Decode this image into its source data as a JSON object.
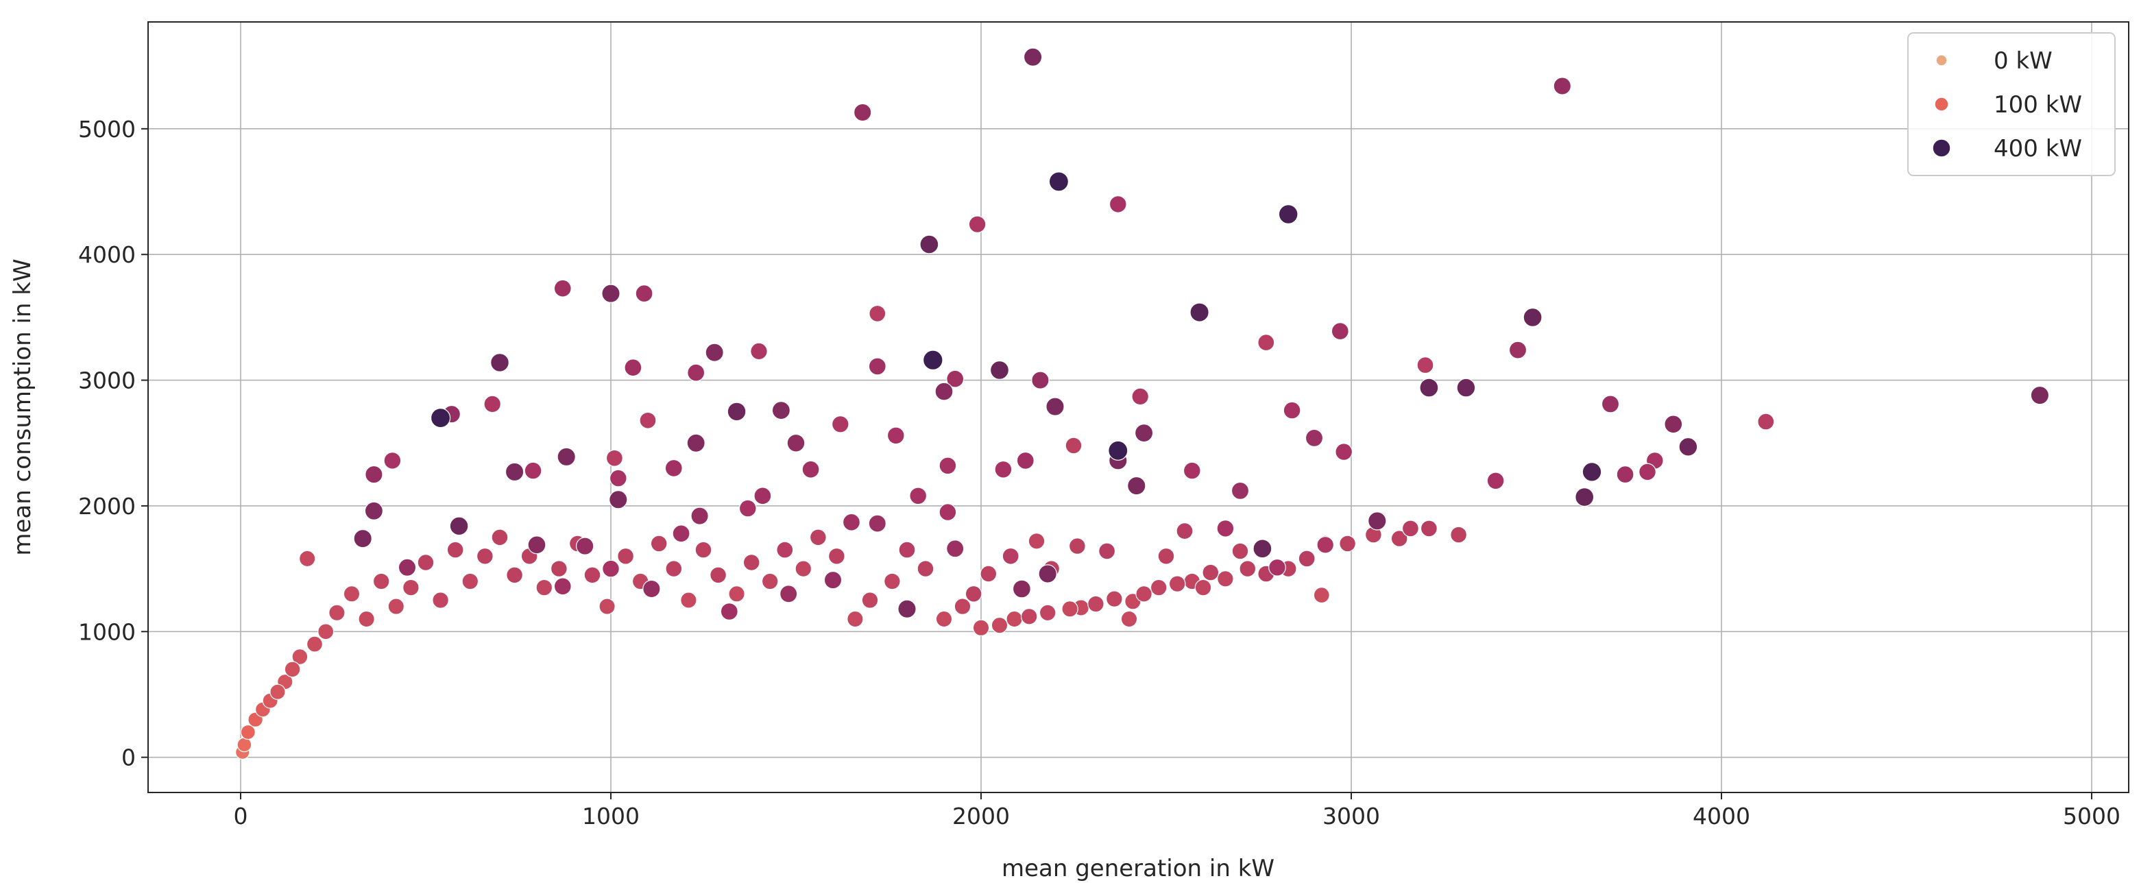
{
  "chart_data": {
    "type": "scatter",
    "xlabel": "mean generation in kW",
    "ylabel": "mean consumption in kW",
    "xlim": [
      -250,
      5100
    ],
    "ylim": [
      -280,
      5850
    ],
    "xticks": [
      0,
      1000,
      2000,
      3000,
      4000,
      5000
    ],
    "yticks": [
      0,
      1000,
      2000,
      3000,
      4000,
      5000
    ],
    "grid": true,
    "legend_position": "top-right",
    "size_legend": [
      {
        "label": "0 kW",
        "kw": 0,
        "color": "#e9a87e"
      },
      {
        "label": "100 kW",
        "kw": 100,
        "color": "#e8645a"
      },
      {
        "label": "400 kW",
        "kw": 400,
        "color": "#3b1e52"
      }
    ],
    "points": [
      [
        2140,
        5570,
        300
      ],
      [
        3570,
        5340,
        260
      ],
      [
        1680,
        5130,
        260
      ],
      [
        2210,
        4580,
        400
      ],
      [
        2370,
        4400,
        230
      ],
      [
        2830,
        4320,
        380
      ],
      [
        1990,
        4240,
        220
      ],
      [
        1860,
        4080,
        330
      ],
      [
        870,
        3730,
        240
      ],
      [
        1000,
        3690,
        300
      ],
      [
        1090,
        3690,
        240
      ],
      [
        2590,
        3540,
        360
      ],
      [
        3490,
        3500,
        330
      ],
      [
        1720,
        3530,
        200
      ],
      [
        2970,
        3390,
        240
      ],
      [
        2770,
        3300,
        200
      ],
      [
        1280,
        3220,
        290
      ],
      [
        1400,
        3230,
        220
      ],
      [
        3450,
        3240,
        250
      ],
      [
        1870,
        3160,
        420
      ],
      [
        700,
        3140,
        320
      ],
      [
        1060,
        3100,
        240
      ],
      [
        1230,
        3060,
        240
      ],
      [
        2050,
        3080,
        330
      ],
      [
        3200,
        3120,
        200
      ],
      [
        1720,
        3110,
        240
      ],
      [
        2160,
        3000,
        260
      ],
      [
        1930,
        3010,
        240
      ],
      [
        3210,
        2940,
        330
      ],
      [
        3310,
        2940,
        320
      ],
      [
        1900,
        2910,
        280
      ],
      [
        4860,
        2880,
        300
      ],
      [
        2430,
        2870,
        220
      ],
      [
        2840,
        2760,
        230
      ],
      [
        3700,
        2810,
        250
      ],
      [
        680,
        2810,
        220
      ],
      [
        2200,
        2790,
        300
      ],
      [
        1340,
        2750,
        320
      ],
      [
        1460,
        2760,
        290
      ],
      [
        540,
        2700,
        400
      ],
      [
        570,
        2730,
        260
      ],
      [
        2900,
        2540,
        250
      ],
      [
        3870,
        2650,
        280
      ],
      [
        4120,
        2670,
        200
      ],
      [
        1620,
        2650,
        220
      ],
      [
        1100,
        2680,
        200
      ],
      [
        2440,
        2580,
        290
      ],
      [
        1770,
        2560,
        230
      ],
      [
        1500,
        2500,
        270
      ],
      [
        3910,
        2470,
        320
      ],
      [
        2370,
        2440,
        400
      ],
      [
        2980,
        2430,
        230
      ],
      [
        2250,
        2480,
        190
      ],
      [
        880,
        2390,
        300
      ],
      [
        1010,
        2380,
        200
      ],
      [
        1230,
        2500,
        290
      ],
      [
        410,
        2360,
        230
      ],
      [
        3820,
        2360,
        230
      ],
      [
        2060,
        2290,
        230
      ],
      [
        740,
        2270,
        300
      ],
      [
        1910,
        2320,
        230
      ],
      [
        3630,
        2070,
        330
      ],
      [
        3650,
        2270,
        370
      ],
      [
        3740,
        2250,
        240
      ],
      [
        3800,
        2270,
        230
      ],
      [
        360,
        2250,
        260
      ],
      [
        1020,
        2220,
        230
      ],
      [
        2370,
        2360,
        300
      ],
      [
        2120,
        2360,
        240
      ],
      [
        1170,
        2300,
        240
      ],
      [
        790,
        2280,
        230
      ],
      [
        360,
        1960,
        290
      ],
      [
        330,
        1740,
        300
      ],
      [
        1910,
        1950,
        230
      ],
      [
        3070,
        1880,
        300
      ],
      [
        2760,
        1660,
        330
      ],
      [
        3390,
        2200,
        230
      ],
      [
        2180,
        1460,
        300
      ],
      [
        2110,
        1340,
        280
      ],
      [
        1020,
        2050,
        300
      ],
      [
        590,
        1840,
        320
      ],
      [
        1800,
        1180,
        300
      ],
      [
        2420,
        2160,
        300
      ],
      [
        2570,
        2280,
        230
      ],
      [
        2700,
        2120,
        250
      ],
      [
        1830,
        2080,
        230
      ],
      [
        1540,
        2290,
        240
      ],
      [
        1720,
        1860,
        250
      ],
      [
        1240,
        1920,
        260
      ],
      [
        930,
        1680,
        260
      ],
      [
        800,
        1690,
        280
      ],
      [
        1650,
        1870,
        240
      ],
      [
        2800,
        1510,
        230
      ],
      [
        2660,
        1820,
        230
      ],
      [
        2930,
        1690,
        220
      ],
      [
        1410,
        2080,
        240
      ],
      [
        1110,
        1340,
        260
      ],
      [
        1600,
        1410,
        260
      ],
      [
        1320,
        1160,
        240
      ],
      [
        1480,
        1300,
        250
      ],
      [
        1000,
        1500,
        230
      ],
      [
        870,
        1360,
        240
      ],
      [
        1190,
        1780,
        240
      ],
      [
        1370,
        1980,
        230
      ],
      [
        450,
        1510,
        260
      ],
      [
        1930,
        1660,
        250
      ],
      [
        3290,
        1770,
        190
      ],
      [
        3210,
        1820,
        200
      ],
      [
        3160,
        1820,
        200
      ],
      [
        3130,
        1740,
        190
      ],
      [
        3060,
        1770,
        190
      ],
      [
        2990,
        1700,
        190
      ],
      [
        2930,
        1700,
        190
      ],
      [
        2920,
        1290,
        160
      ],
      [
        2880,
        1580,
        200
      ],
      [
        2830,
        1500,
        190
      ],
      [
        2770,
        1460,
        200
      ],
      [
        2720,
        1500,
        190
      ],
      [
        2700,
        1640,
        190
      ],
      [
        2660,
        1420,
        180
      ],
      [
        2620,
        1470,
        190
      ],
      [
        2570,
        1400,
        180
      ],
      [
        2530,
        1380,
        180
      ],
      [
        2480,
        1350,
        180
      ],
      [
        2440,
        1300,
        180
      ],
      [
        2410,
        1240,
        170
      ],
      [
        2360,
        1260,
        180
      ],
      [
        2310,
        1220,
        180
      ],
      [
        2270,
        1190,
        170
      ],
      [
        2240,
        1180,
        170
      ],
      [
        2180,
        1150,
        180
      ],
      [
        2130,
        1120,
        180
      ],
      [
        2090,
        1100,
        170
      ],
      [
        2050,
        1050,
        170
      ],
      [
        2000,
        1030,
        170
      ],
      [
        2400,
        1100,
        170
      ],
      [
        2600,
        1350,
        180
      ],
      [
        2500,
        1600,
        190
      ],
      [
        2550,
        1800,
        200
      ],
      [
        2340,
        1640,
        200
      ],
      [
        2260,
        1680,
        190
      ],
      [
        2190,
        1500,
        190
      ],
      [
        2150,
        1720,
        180
      ],
      [
        2080,
        1600,
        200
      ],
      [
        2020,
        1460,
        190
      ],
      [
        1980,
        1300,
        190
      ],
      [
        1950,
        1200,
        180
      ],
      [
        1900,
        1100,
        170
      ],
      [
        1850,
        1500,
        190
      ],
      [
        1800,
        1650,
        200
      ],
      [
        1760,
        1400,
        180
      ],
      [
        1700,
        1250,
        180
      ],
      [
        1660,
        1100,
        170
      ],
      [
        1610,
        1600,
        190
      ],
      [
        1560,
        1750,
        190
      ],
      [
        1520,
        1500,
        180
      ],
      [
        1470,
        1650,
        200
      ],
      [
        1430,
        1400,
        180
      ],
      [
        1380,
        1550,
        190
      ],
      [
        1340,
        1300,
        170
      ],
      [
        1290,
        1450,
        190
      ],
      [
        1250,
        1650,
        190
      ],
      [
        1210,
        1250,
        170
      ],
      [
        1170,
        1500,
        190
      ],
      [
        1130,
        1700,
        190
      ],
      [
        1080,
        1400,
        180
      ],
      [
        1040,
        1600,
        190
      ],
      [
        990,
        1200,
        170
      ],
      [
        950,
        1450,
        190
      ],
      [
        910,
        1700,
        190
      ],
      [
        860,
        1500,
        190
      ],
      [
        820,
        1350,
        180
      ],
      [
        780,
        1600,
        190
      ],
      [
        740,
        1450,
        190
      ],
      [
        700,
        1750,
        190
      ],
      [
        660,
        1600,
        190
      ],
      [
        620,
        1400,
        180
      ],
      [
        580,
        1650,
        190
      ],
      [
        540,
        1250,
        180
      ],
      [
        500,
        1550,
        190
      ],
      [
        460,
        1350,
        180
      ],
      [
        420,
        1200,
        170
      ],
      [
        380,
        1400,
        180
      ],
      [
        340,
        1100,
        170
      ],
      [
        300,
        1300,
        170
      ],
      [
        260,
        1150,
        170
      ],
      [
        230,
        1000,
        160
      ],
      [
        200,
        900,
        160
      ],
      [
        180,
        1580,
        170
      ],
      [
        160,
        800,
        150
      ],
      [
        140,
        700,
        150
      ],
      [
        120,
        600,
        140
      ],
      [
        100,
        520,
        140
      ],
      [
        80,
        450,
        130
      ],
      [
        60,
        380,
        120
      ],
      [
        40,
        300,
        110
      ],
      [
        20,
        200,
        100
      ],
      [
        10,
        100,
        90
      ],
      [
        5,
        40,
        80
      ]
    ]
  }
}
